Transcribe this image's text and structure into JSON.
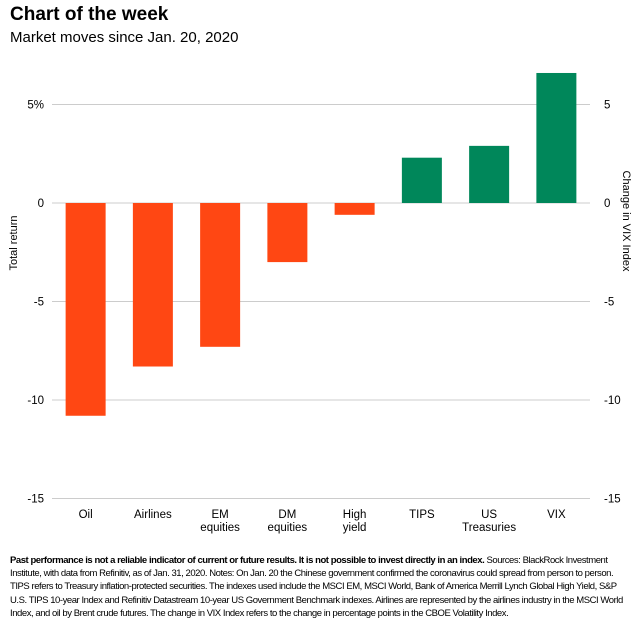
{
  "header": {
    "title": "Chart of the week",
    "subtitle": "Market moves since Jan. 20, 2020"
  },
  "chart_data": {
    "type": "bar",
    "categories": [
      [
        "Oil"
      ],
      [
        "Airlines"
      ],
      [
        "EM",
        "equities"
      ],
      [
        "DM",
        "equities"
      ],
      [
        "High",
        "yield"
      ],
      [
        "TIPS"
      ],
      [
        "US",
        "Treasuries"
      ],
      [
        "VIX"
      ]
    ],
    "values": [
      -10.8,
      -8.3,
      -7.3,
      -3.0,
      -0.6,
      2.3,
      2.9,
      6.6
    ],
    "axis": "left,left,left,left,left,left,left,right",
    "ylabel": "Total return",
    "y2label": "Change in VIX Index",
    "ylim": [
      -15,
      7
    ],
    "y_ticks": [
      5,
      0,
      -5,
      -10,
      -15
    ],
    "y_tick_labels": [
      "5%",
      "0",
      "-5",
      "-10",
      "-15"
    ],
    "y2_ticks": [
      5,
      0,
      -5,
      -10,
      -15
    ],
    "y2_tick_labels": [
      "5",
      "0",
      "-5",
      "-10",
      "-15"
    ],
    "grid": true,
    "colors": {
      "negative": "#ff4713",
      "positive": "#00875a",
      "grid": "#cccccc"
    }
  },
  "footnote": {
    "bold": "Past performance is not a reliable indicator of current or future results. It is not possible to invest directly in an index.",
    "text": " Sources: BlackRock Investment Institute, with data from Refinitiv, as of Jan. 31, 2020. Notes: On Jan. 20 the Chinese government confirmed the coronavirus could spread from person to person. TIPS refers to Treasury inflation-protected securities. The indexes used include the MSCI EM, MSCI World, Bank of America Merrill Lynch Global High Yield, S&P U.S. TIPS 10-year Index and Refinitiv Datastream 10-year US Government Benchmark indexes. Airlines are represented by the airlines industry in the MSCI World Index, and oil by Brent crude futures. The change in VIX Index refers to the change in percentage points in the CBOE Volatility Index."
  }
}
